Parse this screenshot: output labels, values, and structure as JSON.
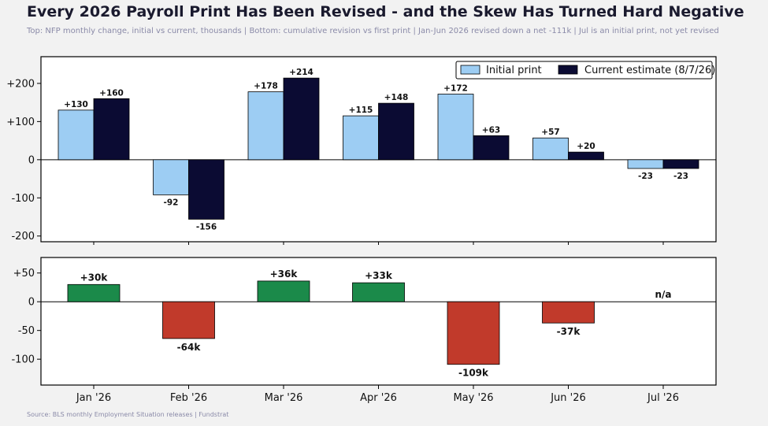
{
  "title": "Every 2026 Payroll Print Has Been Revised - and the Skew Has Turned Hard Negative",
  "subtitle": "Top: NFP monthly change, initial vs current, thousands | Bottom: cumulative revision vs first print | Jan-Jun 2026 revised down a net -111k | Jul is an initial print, not yet revised",
  "source": "Source: BLS monthly Employment Situation releases | Fundstrat",
  "colors": {
    "initial": "#9dcdf3",
    "current": "#0b0b33",
    "positive": "#1b8a4a",
    "negative": "#c13a2b"
  },
  "chart_data": [
    {
      "type": "bar",
      "categories": [
        "Jan '26",
        "Feb '26",
        "Mar '26",
        "Apr '26",
        "May '26",
        "Jun '26",
        "Jul '26"
      ],
      "series": [
        {
          "name": "Initial print",
          "values": [
            130,
            -92,
            178,
            115,
            172,
            57,
            -23
          ],
          "labels": [
            "+130",
            "-92",
            "+178",
            "+115",
            "+172",
            "+57",
            "-23"
          ]
        },
        {
          "name": "Current estimate (8/7/26)",
          "values": [
            160,
            -156,
            214,
            148,
            63,
            20,
            -23
          ],
          "labels": [
            "+160",
            "-156",
            "+214",
            "+148",
            "+63",
            "+20",
            "-23"
          ]
        }
      ],
      "yticks": [
        200,
        100,
        0,
        -100,
        -200
      ],
      "ytick_labels": [
        "+200",
        "+100",
        "0",
        "-100",
        "-200"
      ],
      "ylim": [
        -215,
        270
      ],
      "legend": "top-right",
      "grid": false
    },
    {
      "type": "bar",
      "categories": [
        "Jan '26",
        "Feb '26",
        "Mar '26",
        "Apr '26",
        "May '26",
        "Jun '26",
        "Jul '26"
      ],
      "values": [
        30,
        -64,
        36,
        33,
        -109,
        -37,
        null
      ],
      "labels": [
        "+30k",
        "-64k",
        "+36k",
        "+33k",
        "-109k",
        "-37k",
        "n/a"
      ],
      "yticks": [
        50,
        0,
        -50,
        -100
      ],
      "ytick_labels": [
        "+50",
        "0",
        "-50",
        "-100"
      ],
      "ylim": [
        -145,
        77
      ],
      "grid": false
    }
  ]
}
